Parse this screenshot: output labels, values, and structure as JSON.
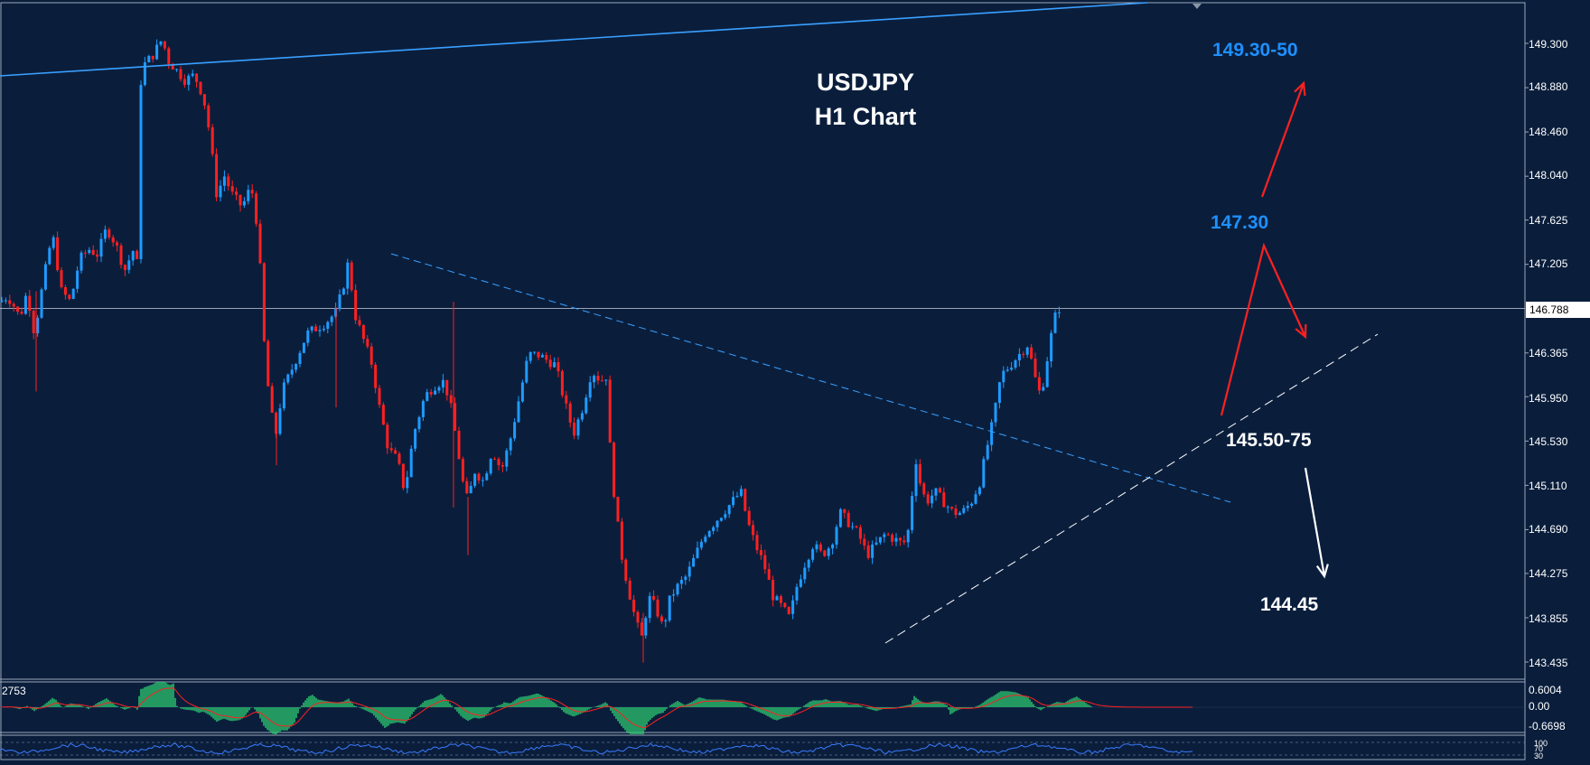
{
  "chart_data": {
    "type": "candlestick",
    "symbol": "USDJPY",
    "title_line1": "USDJPY",
    "title_line2": "H1 Chart",
    "last_price": "146.788",
    "y_ticks": [
      "149.300",
      "148.880",
      "148.460",
      "148.040",
      "147.625",
      "147.205",
      "146.365",
      "145.950",
      "145.530",
      "145.110",
      "144.690",
      "144.275",
      "143.855",
      "143.435"
    ],
    "ylim": [
      143.32,
      149.66
    ],
    "annotations": [
      {
        "text": "149.30-50",
        "color": "#1e90ff"
      },
      {
        "text": "147.30",
        "color": "#1e90ff"
      },
      {
        "text": "145.50-75",
        "color": "#ffffff"
      },
      {
        "text": "144.45",
        "color": "#ffffff"
      }
    ],
    "indicator": {
      "name_fragment": "2753",
      "ticks": [
        "0.6004",
        "0.00",
        "-0.6698"
      ]
    },
    "bottom_ticks": [
      "100",
      "70",
      "30"
    ],
    "close_path": [
      [
        0,
        146.85
      ],
      [
        8,
        146.9
      ],
      [
        13,
        146.85
      ],
      [
        22,
        146.7
      ],
      [
        30,
        146.95
      ],
      [
        38,
        146.55
      ],
      [
        48,
        147.05
      ],
      [
        58,
        147.5
      ],
      [
        68,
        146.95
      ],
      [
        78,
        146.85
      ],
      [
        88,
        147.25
      ],
      [
        98,
        147.35
      ],
      [
        108,
        147.3
      ],
      [
        118,
        147.55
      ],
      [
        128,
        147.4
      ],
      [
        138,
        147.15
      ],
      [
        148,
        147.35
      ],
      [
        152,
        147.2
      ],
      [
        155,
        148.9
      ],
      [
        160,
        149.1
      ],
      [
        170,
        149.2
      ],
      [
        180,
        149.35
      ],
      [
        185,
        149.15
      ],
      [
        195,
        149.05
      ],
      [
        205,
        148.95
      ],
      [
        215,
        149.0
      ],
      [
        225,
        148.8
      ],
      [
        232,
        148.45
      ],
      [
        240,
        147.85
      ],
      [
        248,
        148.05
      ],
      [
        258,
        147.85
      ],
      [
        268,
        147.75
      ],
      [
        278,
        147.95
      ],
      [
        286,
        147.5
      ],
      [
        292,
        146.5
      ],
      [
        296,
        146.1
      ],
      [
        302,
        145.7
      ],
      [
        306,
        145.6
      ],
      [
        312,
        146.0
      ],
      [
        320,
        146.15
      ],
      [
        330,
        146.35
      ],
      [
        340,
        146.55
      ],
      [
        350,
        146.6
      ],
      [
        360,
        146.65
      ],
      [
        372,
        146.75
      ],
      [
        380,
        147.0
      ],
      [
        386,
        147.25
      ],
      [
        392,
        146.75
      ],
      [
        400,
        146.55
      ],
      [
        412,
        146.25
      ],
      [
        420,
        145.85
      ],
      [
        430,
        145.45
      ],
      [
        440,
        145.35
      ],
      [
        448,
        145.05
      ],
      [
        458,
        145.6
      ],
      [
        470,
        145.95
      ],
      [
        480,
        146.05
      ],
      [
        490,
        146.1
      ],
      [
        497,
        145.95
      ],
      [
        505,
        145.55
      ],
      [
        512,
        145.15
      ],
      [
        518,
        144.95
      ],
      [
        525,
        145.25
      ],
      [
        535,
        145.15
      ],
      [
        545,
        145.45
      ],
      [
        555,
        145.25
      ],
      [
        565,
        145.55
      ],
      [
        575,
        145.95
      ],
      [
        585,
        146.35
      ],
      [
        595,
        146.35
      ],
      [
        605,
        146.3
      ],
      [
        615,
        146.25
      ],
      [
        625,
        145.9
      ],
      [
        635,
        145.6
      ],
      [
        645,
        145.85
      ],
      [
        655,
        146.2
      ],
      [
        665,
        146.1
      ],
      [
        671,
        146.15
      ],
      [
        676,
        145.35
      ],
      [
        682,
        144.85
      ],
      [
        688,
        144.45
      ],
      [
        695,
        144.15
      ],
      [
        703,
        143.85
      ],
      [
        710,
        143.65
      ],
      [
        718,
        144.05
      ],
      [
        726,
        143.95
      ],
      [
        734,
        143.75
      ],
      [
        742,
        144.05
      ],
      [
        750,
        144.15
      ],
      [
        760,
        144.25
      ],
      [
        770,
        144.45
      ],
      [
        780,
        144.65
      ],
      [
        790,
        144.75
      ],
      [
        800,
        144.85
      ],
      [
        810,
        144.95
      ],
      [
        820,
        145.05
      ],
      [
        828,
        144.75
      ],
      [
        836,
        144.55
      ],
      [
        846,
        144.35
      ],
      [
        856,
        144.05
      ],
      [
        866,
        143.95
      ],
      [
        874,
        143.85
      ],
      [
        882,
        144.15
      ],
      [
        890,
        144.35
      ],
      [
        900,
        144.55
      ],
      [
        910,
        144.45
      ],
      [
        920,
        144.55
      ],
      [
        930,
        144.85
      ],
      [
        940,
        144.75
      ],
      [
        950,
        144.65
      ],
      [
        960,
        144.45
      ],
      [
        970,
        144.55
      ],
      [
        980,
        144.65
      ],
      [
        990,
        144.6
      ],
      [
        1000,
        144.55
      ],
      [
        1008,
        144.75
      ],
      [
        1012,
        145.45
      ],
      [
        1018,
        145.15
      ],
      [
        1025,
        144.95
      ],
      [
        1035,
        145.05
      ],
      [
        1045,
        144.95
      ],
      [
        1055,
        144.85
      ],
      [
        1065,
        144.85
      ],
      [
        1075,
        144.95
      ],
      [
        1085,
        145.15
      ],
      [
        1092,
        145.45
      ],
      [
        1100,
        145.75
      ],
      [
        1108,
        146.15
      ],
      [
        1118,
        146.25
      ],
      [
        1128,
        146.35
      ],
      [
        1138,
        146.45
      ],
      [
        1145,
        146.15
      ],
      [
        1152,
        145.95
      ],
      [
        1158,
        146.25
      ],
      [
        1164,
        146.55
      ],
      [
        1170,
        146.79
      ],
      [
        1176,
        146.79
      ]
    ]
  }
}
